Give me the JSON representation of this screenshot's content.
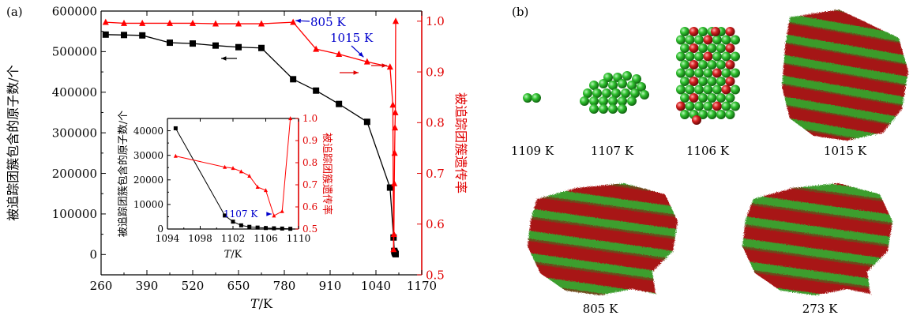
{
  "panel_a_label": "(a)",
  "panel_b_label": "(b)",
  "chart_data": [
    {
      "type": "line",
      "xlabel_var": "T",
      "xlabel_unit": "/K",
      "xlim": [
        260,
        1170
      ],
      "x_ticks": [
        260,
        390,
        520,
        650,
        780,
        910,
        1040,
        1170
      ],
      "ylabel_left": "被追踪团簇包含的原子数/个",
      "ylim_left": [
        -50000,
        600000
      ],
      "yticks_left": [
        0,
        100000,
        200000,
        300000,
        400000,
        500000,
        600000
      ],
      "ylabel_right": "被追踪团簇遗传率",
      "ylim_right": [
        0.5,
        1.02
      ],
      "yticks_right": [
        0.5,
        0.6,
        0.7,
        0.8,
        0.9,
        1.0
      ],
      "series": [
        {
          "axis": "left",
          "color": "#000000",
          "marker": "square",
          "x": [
            273,
            325,
            377,
            455,
            520,
            585,
            650,
            715,
            805,
            870,
            935,
            1015,
            1080,
            1090,
            1092,
            1093,
            1094,
            1095,
            1096
          ],
          "y": [
            542000,
            541000,
            540000,
            522000,
            520000,
            515000,
            511000,
            509000,
            432000,
            404000,
            371000,
            327000,
            165000,
            42000,
            9000,
            6000,
            4000,
            2500,
            800
          ]
        },
        {
          "axis": "right",
          "color": "#ff0000",
          "marker": "triangle",
          "x": [
            273,
            325,
            377,
            455,
            520,
            585,
            650,
            715,
            805,
            870,
            935,
            1015,
            1080,
            1088,
            1090,
            1091,
            1092,
            1093,
            1094,
            1095,
            1096
          ],
          "y": [
            0.998,
            0.996,
            0.996,
            0.996,
            0.996,
            0.995,
            0.995,
            0.995,
            0.998,
            0.945,
            0.935,
            0.92,
            0.91,
            0.835,
            0.55,
            0.58,
            0.68,
            0.74,
            0.79,
            0.82,
            1.0
          ]
        }
      ],
      "annotations": [
        {
          "text": "805 K",
          "color": "#0000cc"
        },
        {
          "text": "1015 K",
          "color": "#0000cc"
        }
      ],
      "arrow_hint": "left"
    },
    {
      "type": "line",
      "inset": true,
      "xlabel_var": "T",
      "xlabel_unit": "/K",
      "xlim": [
        1094,
        1110
      ],
      "x_ticks": [
        1094,
        1098,
        1102,
        1106,
        1110
      ],
      "ylabel_left": "被追踪团簇包含的原子数/个",
      "ylim_left": [
        0,
        45000
      ],
      "yticks_left": [
        0,
        10000,
        20000,
        30000,
        40000
      ],
      "ylabel_right": "被追踪团簇遗传率",
      "ylim_right": [
        0.5,
        1.0
      ],
      "yticks_right": [
        0.5,
        0.6,
        0.7,
        0.8,
        0.9,
        1.0
      ],
      "series": [
        {
          "axis": "left",
          "color": "#000000",
          "marker": "square",
          "x": [
            1095,
            1101,
            1102,
            1103,
            1104,
            1105,
            1106,
            1107,
            1108,
            1109
          ],
          "y": [
            41000,
            5500,
            3000,
            1500,
            900,
            600,
            400,
            300,
            200,
            100
          ]
        },
        {
          "axis": "right",
          "color": "#ff0000",
          "marker": "triangle",
          "x": [
            1095,
            1101,
            1102,
            1103,
            1104,
            1105,
            1106,
            1107,
            1108,
            1109
          ],
          "y": [
            0.83,
            0.78,
            0.775,
            0.76,
            0.74,
            0.69,
            0.675,
            0.56,
            0.58,
            1.0
          ]
        }
      ],
      "annotations": [
        {
          "text": "1107 K",
          "color": "#0000cc"
        }
      ]
    }
  ],
  "panel_b": {
    "labels": [
      "1109 K",
      "1107 K",
      "1106 K",
      "1015 K",
      "805 K",
      "273 K"
    ],
    "colors": {
      "green": "#27b327",
      "red": "#c41414",
      "dark_red": "#8b1010",
      "dark_green": "#2e7d2e"
    }
  }
}
